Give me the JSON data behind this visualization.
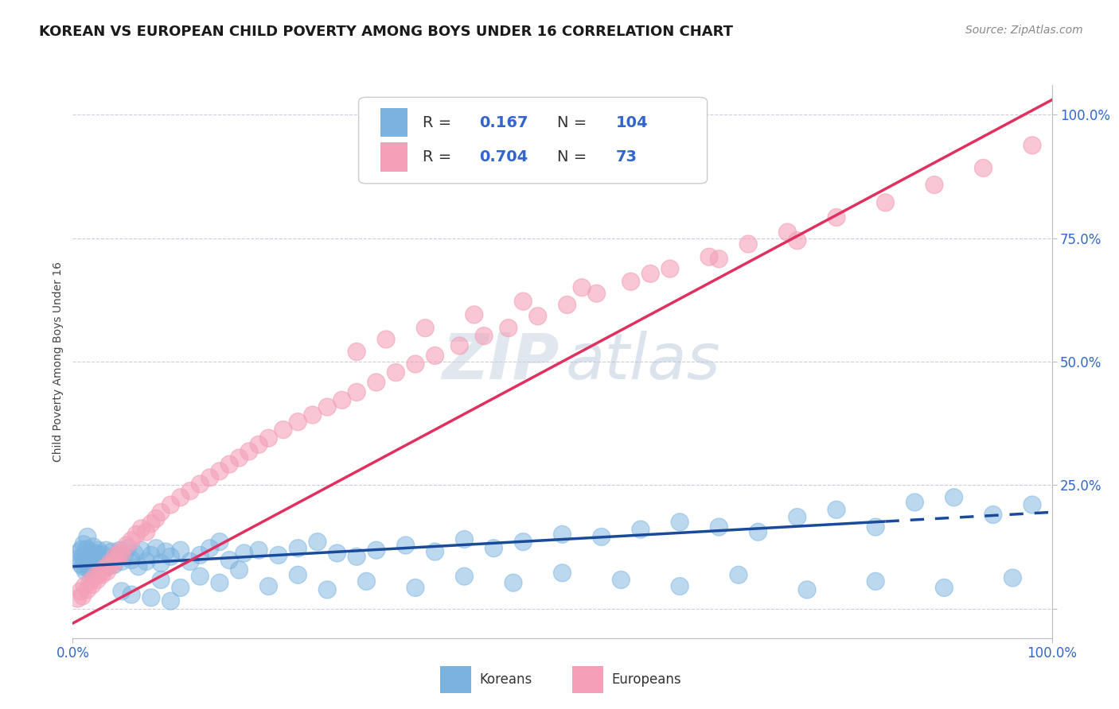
{
  "title": "KOREAN VS EUROPEAN CHILD POVERTY AMONG BOYS UNDER 16 CORRELATION CHART",
  "source": "Source: ZipAtlas.com",
  "ylabel": "Child Poverty Among Boys Under 16",
  "koreans_R": 0.167,
  "koreans_N": 104,
  "europeans_R": 0.704,
  "europeans_N": 73,
  "korean_color": "#7ab3e0",
  "european_color": "#f4a0b8",
  "korean_line_color": "#1a4a9a",
  "european_line_color": "#e03060",
  "background_color": "#ffffff",
  "grid_color": "#ccccdd",
  "title_fontsize": 13,
  "source_fontsize": 10,
  "xlim": [
    0.0,
    1.0
  ],
  "ylim": [
    -0.06,
    1.06
  ],
  "yticks": [
    0.0,
    0.25,
    0.5,
    0.75,
    1.0
  ],
  "ytick_labels": [
    "",
    "25.0%",
    "50.0%",
    "75.0%",
    "100.0%"
  ],
  "xtick_labels": [
    "0.0%",
    "100.0%"
  ],
  "korean_line_x": [
    0.0,
    1.0
  ],
  "korean_line_y": [
    0.085,
    0.195
  ],
  "korean_dash_from": 0.83,
  "european_line_x": [
    0.0,
    1.0
  ],
  "european_line_y": [
    -0.03,
    1.03
  ],
  "korean_pts_x": [
    0.005,
    0.007,
    0.008,
    0.009,
    0.01,
    0.01,
    0.011,
    0.012,
    0.013,
    0.013,
    0.014,
    0.015,
    0.015,
    0.016,
    0.017,
    0.018,
    0.019,
    0.02,
    0.02,
    0.021,
    0.022,
    0.023,
    0.025,
    0.026,
    0.027,
    0.028,
    0.03,
    0.032,
    0.034,
    0.036,
    0.038,
    0.04,
    0.042,
    0.045,
    0.048,
    0.05,
    0.053,
    0.056,
    0.06,
    0.063,
    0.067,
    0.07,
    0.075,
    0.08,
    0.085,
    0.09,
    0.095,
    0.1,
    0.11,
    0.12,
    0.13,
    0.14,
    0.15,
    0.16,
    0.175,
    0.19,
    0.21,
    0.23,
    0.25,
    0.27,
    0.29,
    0.31,
    0.34,
    0.37,
    0.4,
    0.43,
    0.46,
    0.5,
    0.54,
    0.58,
    0.62,
    0.66,
    0.7,
    0.74,
    0.78,
    0.82,
    0.86,
    0.9,
    0.94,
    0.98,
    0.09,
    0.11,
    0.13,
    0.15,
    0.17,
    0.2,
    0.23,
    0.26,
    0.3,
    0.35,
    0.4,
    0.45,
    0.5,
    0.56,
    0.62,
    0.68,
    0.75,
    0.82,
    0.89,
    0.96,
    0.05,
    0.06,
    0.08,
    0.1
  ],
  "korean_pts_y": [
    0.1,
    0.115,
    0.09,
    0.12,
    0.105,
    0.085,
    0.13,
    0.095,
    0.11,
    0.075,
    0.12,
    0.088,
    0.145,
    0.102,
    0.078,
    0.115,
    0.092,
    0.108,
    0.072,
    0.125,
    0.095,
    0.112,
    0.098,
    0.118,
    0.085,
    0.105,
    0.11,
    0.092,
    0.118,
    0.085,
    0.102,
    0.115,
    0.088,
    0.105,
    0.118,
    0.095,
    0.108,
    0.122,
    0.098,
    0.112,
    0.085,
    0.118,
    0.095,
    0.108,
    0.122,
    0.092,
    0.115,
    0.105,
    0.118,
    0.095,
    0.108,
    0.122,
    0.135,
    0.098,
    0.112,
    0.118,
    0.108,
    0.122,
    0.135,
    0.112,
    0.105,
    0.118,
    0.128,
    0.115,
    0.14,
    0.122,
    0.135,
    0.15,
    0.145,
    0.16,
    0.175,
    0.165,
    0.155,
    0.185,
    0.2,
    0.165,
    0.215,
    0.225,
    0.19,
    0.21,
    0.058,
    0.042,
    0.065,
    0.052,
    0.078,
    0.045,
    0.068,
    0.038,
    0.055,
    0.042,
    0.065,
    0.052,
    0.072,
    0.058,
    0.045,
    0.068,
    0.038,
    0.055,
    0.042,
    0.062,
    0.035,
    0.028,
    0.022,
    0.015
  ],
  "european_pts_x": [
    0.005,
    0.008,
    0.01,
    0.012,
    0.015,
    0.018,
    0.02,
    0.023,
    0.025,
    0.028,
    0.03,
    0.033,
    0.035,
    0.038,
    0.04,
    0.043,
    0.045,
    0.048,
    0.05,
    0.055,
    0.06,
    0.065,
    0.07,
    0.075,
    0.08,
    0.085,
    0.09,
    0.1,
    0.11,
    0.12,
    0.13,
    0.14,
    0.15,
    0.16,
    0.17,
    0.18,
    0.19,
    0.2,
    0.215,
    0.23,
    0.245,
    0.26,
    0.275,
    0.29,
    0.31,
    0.33,
    0.35,
    0.37,
    0.395,
    0.42,
    0.445,
    0.475,
    0.505,
    0.535,
    0.57,
    0.61,
    0.65,
    0.69,
    0.73,
    0.78,
    0.83,
    0.88,
    0.93,
    0.98,
    0.29,
    0.32,
    0.36,
    0.41,
    0.46,
    0.52,
    0.59,
    0.66,
    0.74
  ],
  "european_pts_y": [
    0.02,
    0.035,
    0.025,
    0.045,
    0.038,
    0.055,
    0.048,
    0.065,
    0.058,
    0.072,
    0.068,
    0.082,
    0.075,
    0.092,
    0.088,
    0.105,
    0.098,
    0.115,
    0.11,
    0.128,
    0.138,
    0.15,
    0.162,
    0.155,
    0.172,
    0.182,
    0.195,
    0.21,
    0.225,
    0.238,
    0.252,
    0.265,
    0.278,
    0.292,
    0.305,
    0.318,
    0.332,
    0.345,
    0.362,
    0.378,
    0.392,
    0.408,
    0.422,
    0.438,
    0.458,
    0.478,
    0.495,
    0.512,
    0.532,
    0.552,
    0.568,
    0.592,
    0.615,
    0.638,
    0.662,
    0.688,
    0.712,
    0.738,
    0.762,
    0.792,
    0.822,
    0.858,
    0.892,
    0.938,
    0.52,
    0.545,
    0.568,
    0.595,
    0.622,
    0.65,
    0.678,
    0.708,
    0.745
  ]
}
